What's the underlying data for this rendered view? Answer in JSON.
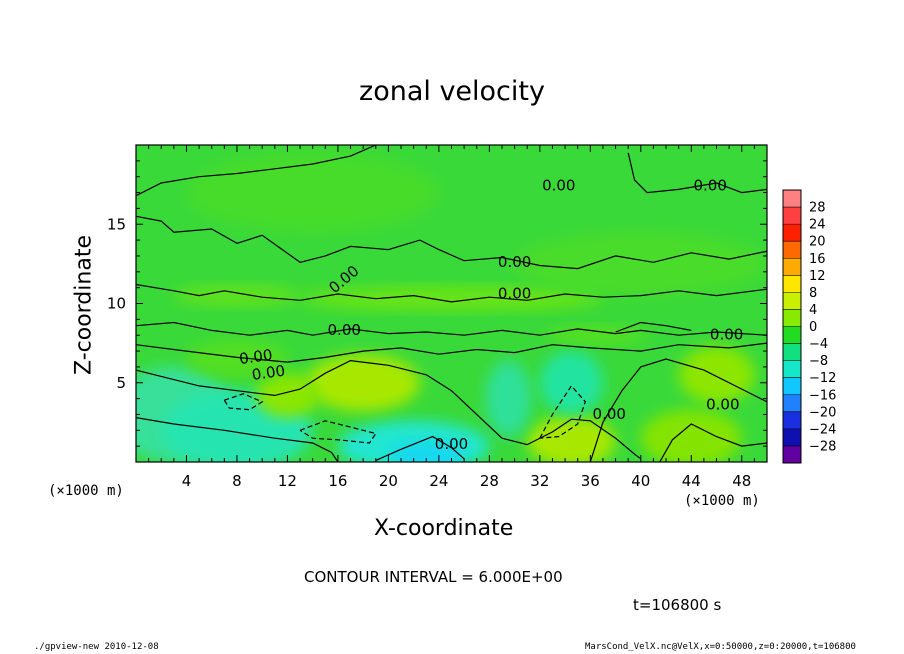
{
  "chart_data": {
    "type": "heatmap",
    "title": "zonal velocity",
    "xlabel": "X-coordinate",
    "ylabel": "Z-coordinate",
    "x_unit": "(×1000 m)",
    "y_unit": "(×1000 m)",
    "xlim": [
      0,
      50
    ],
    "ylim": [
      0,
      20
    ],
    "x_ticks": [
      "4",
      "8",
      "12",
      "16",
      "20",
      "24",
      "28",
      "32",
      "36",
      "40",
      "44",
      "48"
    ],
    "y_ticks": [
      "5",
      "10",
      "15"
    ],
    "colorbar": {
      "levels": [
        "28",
        "24",
        "20",
        "16",
        "12",
        "8",
        "4",
        "0",
        "−4",
        "−8",
        "−12",
        "−16",
        "−20",
        "−24",
        "−28"
      ],
      "colors": [
        "#ff8080",
        "#ff4040",
        "#ff2000",
        "#ff6a00",
        "#ffaa00",
        "#ffe600",
        "#c8f000",
        "#88ea00",
        "#22dc22",
        "#10e080",
        "#14e8c8",
        "#10c8ff",
        "#2080ff",
        "#1a30e0",
        "#1010b0",
        "#6000a0"
      ]
    },
    "contour_labels": [
      "0.00",
      "0.00",
      "0.00",
      "0.00",
      "0.00",
      "0.00",
      "0.00",
      "0.00",
      "0.00",
      "0.00",
      "0.00",
      "0.00"
    ],
    "contour_interval": "CONTOUR INTERVAL = 6.000E+00",
    "time": "t=106800 s"
  },
  "footer": {
    "left": "./gpview-new  2010-12-08",
    "right": "MarsCond_VelX.nc@VelX,x=0:50000,z=0:20000,t=106800"
  }
}
